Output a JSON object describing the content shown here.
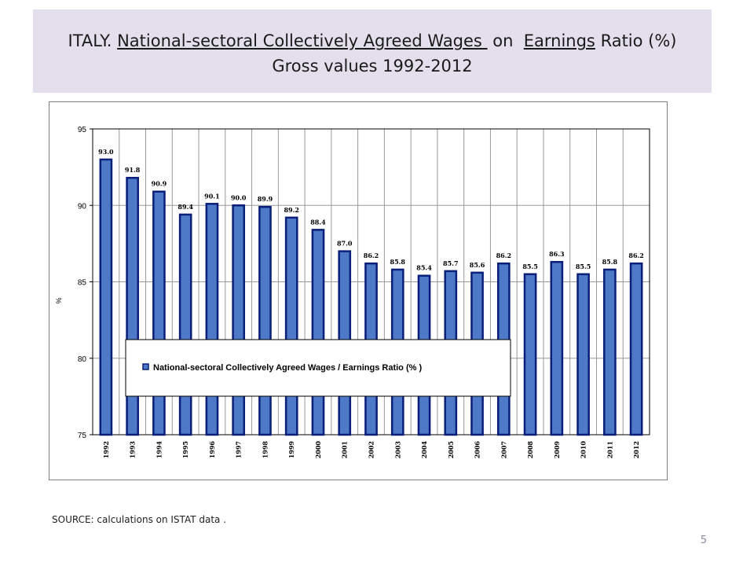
{
  "slide": {
    "title_line1_prefix": "ITALY. ",
    "title_line1_u1": "National-sectoral Collectively Agreed Wages ",
    "title_line1_mid": " on  ",
    "title_line1_u2": "Earnings",
    "title_line1_suffix": " Ratio (%)",
    "title_line2": "Gross values 1992-2012",
    "source": "SOURCE: calculations on ISTAT data .",
    "page_number": "5"
  },
  "chart_data": {
    "type": "bar",
    "categories": [
      "1992",
      "1993",
      "1994",
      "1995",
      "1996",
      "1997",
      "1998",
      "1999",
      "2000",
      "2001",
      "2002",
      "2003",
      "2004",
      "2005",
      "2006",
      "2007",
      "2008",
      "2009",
      "2010",
      "2011",
      "2012"
    ],
    "values": [
      93.0,
      91.8,
      90.9,
      89.4,
      90.1,
      90.0,
      89.9,
      89.2,
      88.4,
      87.0,
      86.2,
      85.8,
      85.4,
      85.7,
      85.6,
      86.2,
      85.5,
      86.3,
      85.5,
      85.8,
      86.2
    ],
    "data_labels": [
      "93.0",
      "91.8",
      "90.9",
      "89.4",
      "90.1",
      "90.0",
      "89.9",
      "89.2",
      "88.4",
      "87.0",
      "86.2",
      "85.8",
      "85.4",
      "85.7",
      "85.6",
      "86.2",
      "85.5",
      "86.3",
      "85.5",
      "85.8",
      "86.2"
    ],
    "ylabel": "%",
    "ylim": [
      75,
      95
    ],
    "yticks": [
      "75",
      "80",
      "85",
      "90",
      "95"
    ],
    "grid": true,
    "legend": "center",
    "series": [
      {
        "name": "National-sectoral Collectively Agreed Wages / Earnings Ratio (% )",
        "values": [
          93.0,
          91.8,
          90.9,
          89.4,
          90.1,
          90.0,
          89.9,
          89.2,
          88.4,
          87.0,
          86.2,
          85.8,
          85.4,
          85.7,
          85.6,
          86.2,
          85.5,
          86.3,
          85.5,
          85.8,
          86.2
        ]
      }
    ],
    "colors": {
      "bar_fill": "#4d79c7",
      "bar_stroke": "#0a1f7a",
      "grid": "#999999"
    }
  }
}
